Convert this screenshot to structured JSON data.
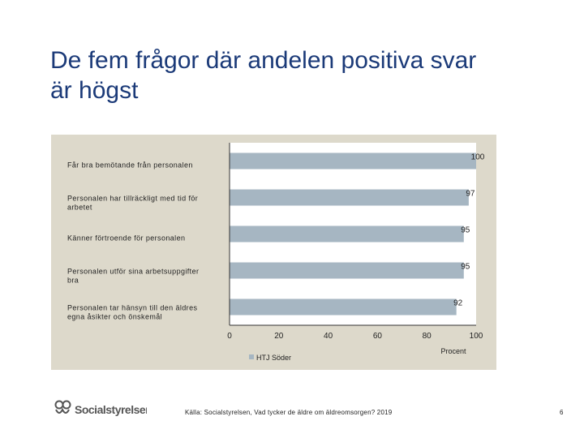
{
  "title_line1": "De fem frågor där andelen positiva svar",
  "title_line2": "är högst",
  "chart_data": {
    "type": "bar",
    "orientation": "horizontal",
    "categories": [
      [
        "Får bra bemötande från personalen"
      ],
      [
        "Personalen har tillräckligt med tid för",
        "arbetet"
      ],
      [
        "Känner förtroende för personalen"
      ],
      [
        "Personalen utför sina arbetsuppgifter",
        "bra"
      ],
      [
        "Personalen tar hänsyn till den äldres",
        "egna åsikter och önskemål"
      ]
    ],
    "series": [
      {
        "name": "HTJ Söder",
        "values": [
          100,
          97,
          95,
          95,
          92
        ],
        "color": "#a6b6c2"
      }
    ],
    "xlim": [
      0,
      100
    ],
    "xticks": [
      "0",
      "20",
      "40",
      "60",
      "80",
      "100"
    ],
    "xlabel": "Procent",
    "legend": "bottom",
    "grid": false
  },
  "logo_text": "Socialstyrelsen",
  "source": "Källa: Socialstyrelsen, Vad tycker de äldre om äldreomsorgen? 2019",
  "page_number": "6"
}
